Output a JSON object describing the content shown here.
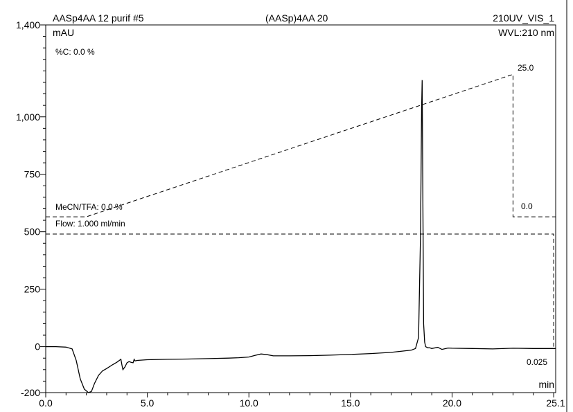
{
  "header": {
    "sample_name": "AASp4AA 12 purif #5",
    "program": "(AASp)4AA 20",
    "channel": "210UV_VIS_1",
    "wavelength": "WVL:210 nm"
  },
  "annotations": {
    "percent_c": "%C: 0.0 %",
    "mecn_tfa": "MeCN/TFA: 0.0 %",
    "flow": "Flow: 1.000 ml/min",
    "gradient_end_label": "25.0",
    "gradient_reset_label": "0.0",
    "flow_end_label": "0.025"
  },
  "chart_data": {
    "type": "line",
    "title": "",
    "xlabel": "min",
    "ylabel": "mAU",
    "xlim": [
      0.0,
      25.1
    ],
    "ylim": [
      -200,
      1400
    ],
    "x_ticks": [
      0.0,
      5.0,
      10.0,
      15.0,
      20.0,
      25.1
    ],
    "x_tick_labels": [
      "0.0",
      "5.0",
      "10.0",
      "15.0",
      "20.0",
      "25.1"
    ],
    "y_ticks": [
      -200,
      0,
      250,
      500,
      750,
      1000,
      1400
    ],
    "y_tick_labels": [
      "-200",
      "0",
      "250",
      "500",
      "750",
      "1,000",
      "1,400"
    ],
    "grid": false,
    "series": [
      {
        "style": "solid",
        "x": [
          0.0,
          0.5,
          1.0,
          1.3,
          1.5,
          1.7,
          1.9,
          2.1,
          2.25,
          2.4,
          2.6,
          2.8,
          3.0,
          3.3,
          3.5,
          3.7,
          3.75,
          3.8,
          3.9,
          4.0,
          4.1,
          4.2,
          4.3,
          4.35,
          4.4,
          4.5,
          5.0,
          6.0,
          7.0,
          8.0,
          9.0,
          9.5,
          10.0,
          10.3,
          10.6,
          10.9,
          11.2,
          11.5,
          12.0,
          13.0,
          14.0,
          15.0,
          16.0,
          17.0,
          18.0,
          18.2,
          18.35,
          18.45,
          18.5,
          18.53,
          18.56,
          18.6,
          18.65,
          18.7,
          18.8,
          18.9,
          19.0,
          19.3,
          19.5,
          19.8,
          20.0,
          21.0,
          22.0,
          23.0,
          24.0,
          25.0,
          25.1
        ],
        "y": [
          0,
          0,
          -2,
          -10,
          -60,
          -140,
          -185,
          -200,
          -195,
          -160,
          -125,
          -105,
          -95,
          -78,
          -68,
          -55,
          -80,
          -100,
          -88,
          -70,
          -65,
          -68,
          -70,
          -55,
          -62,
          -60,
          -57,
          -55,
          -54,
          -52,
          -50,
          -48,
          -45,
          -38,
          -32,
          -35,
          -40,
          -40,
          -40,
          -39,
          -37,
          -34,
          -30,
          -25,
          -15,
          -8,
          40,
          500,
          1040,
          1160,
          700,
          100,
          20,
          0,
          -5,
          -5,
          -8,
          -3,
          -12,
          -6,
          -7,
          -8,
          -10,
          -7,
          -8,
          -8,
          -8
        ]
      },
      {
        "name": "MeCN/TFA",
        "style": "dashed",
        "x": [
          0.0,
          2.0,
          23.0,
          23.0,
          25.1
        ],
        "y": [
          565,
          565,
          1185,
          565,
          565
        ]
      },
      {
        "name": "Flow",
        "style": "dashed",
        "x": [
          0.0,
          25.0,
          25.0
        ],
        "y": [
          490,
          490,
          0
        ]
      }
    ]
  }
}
